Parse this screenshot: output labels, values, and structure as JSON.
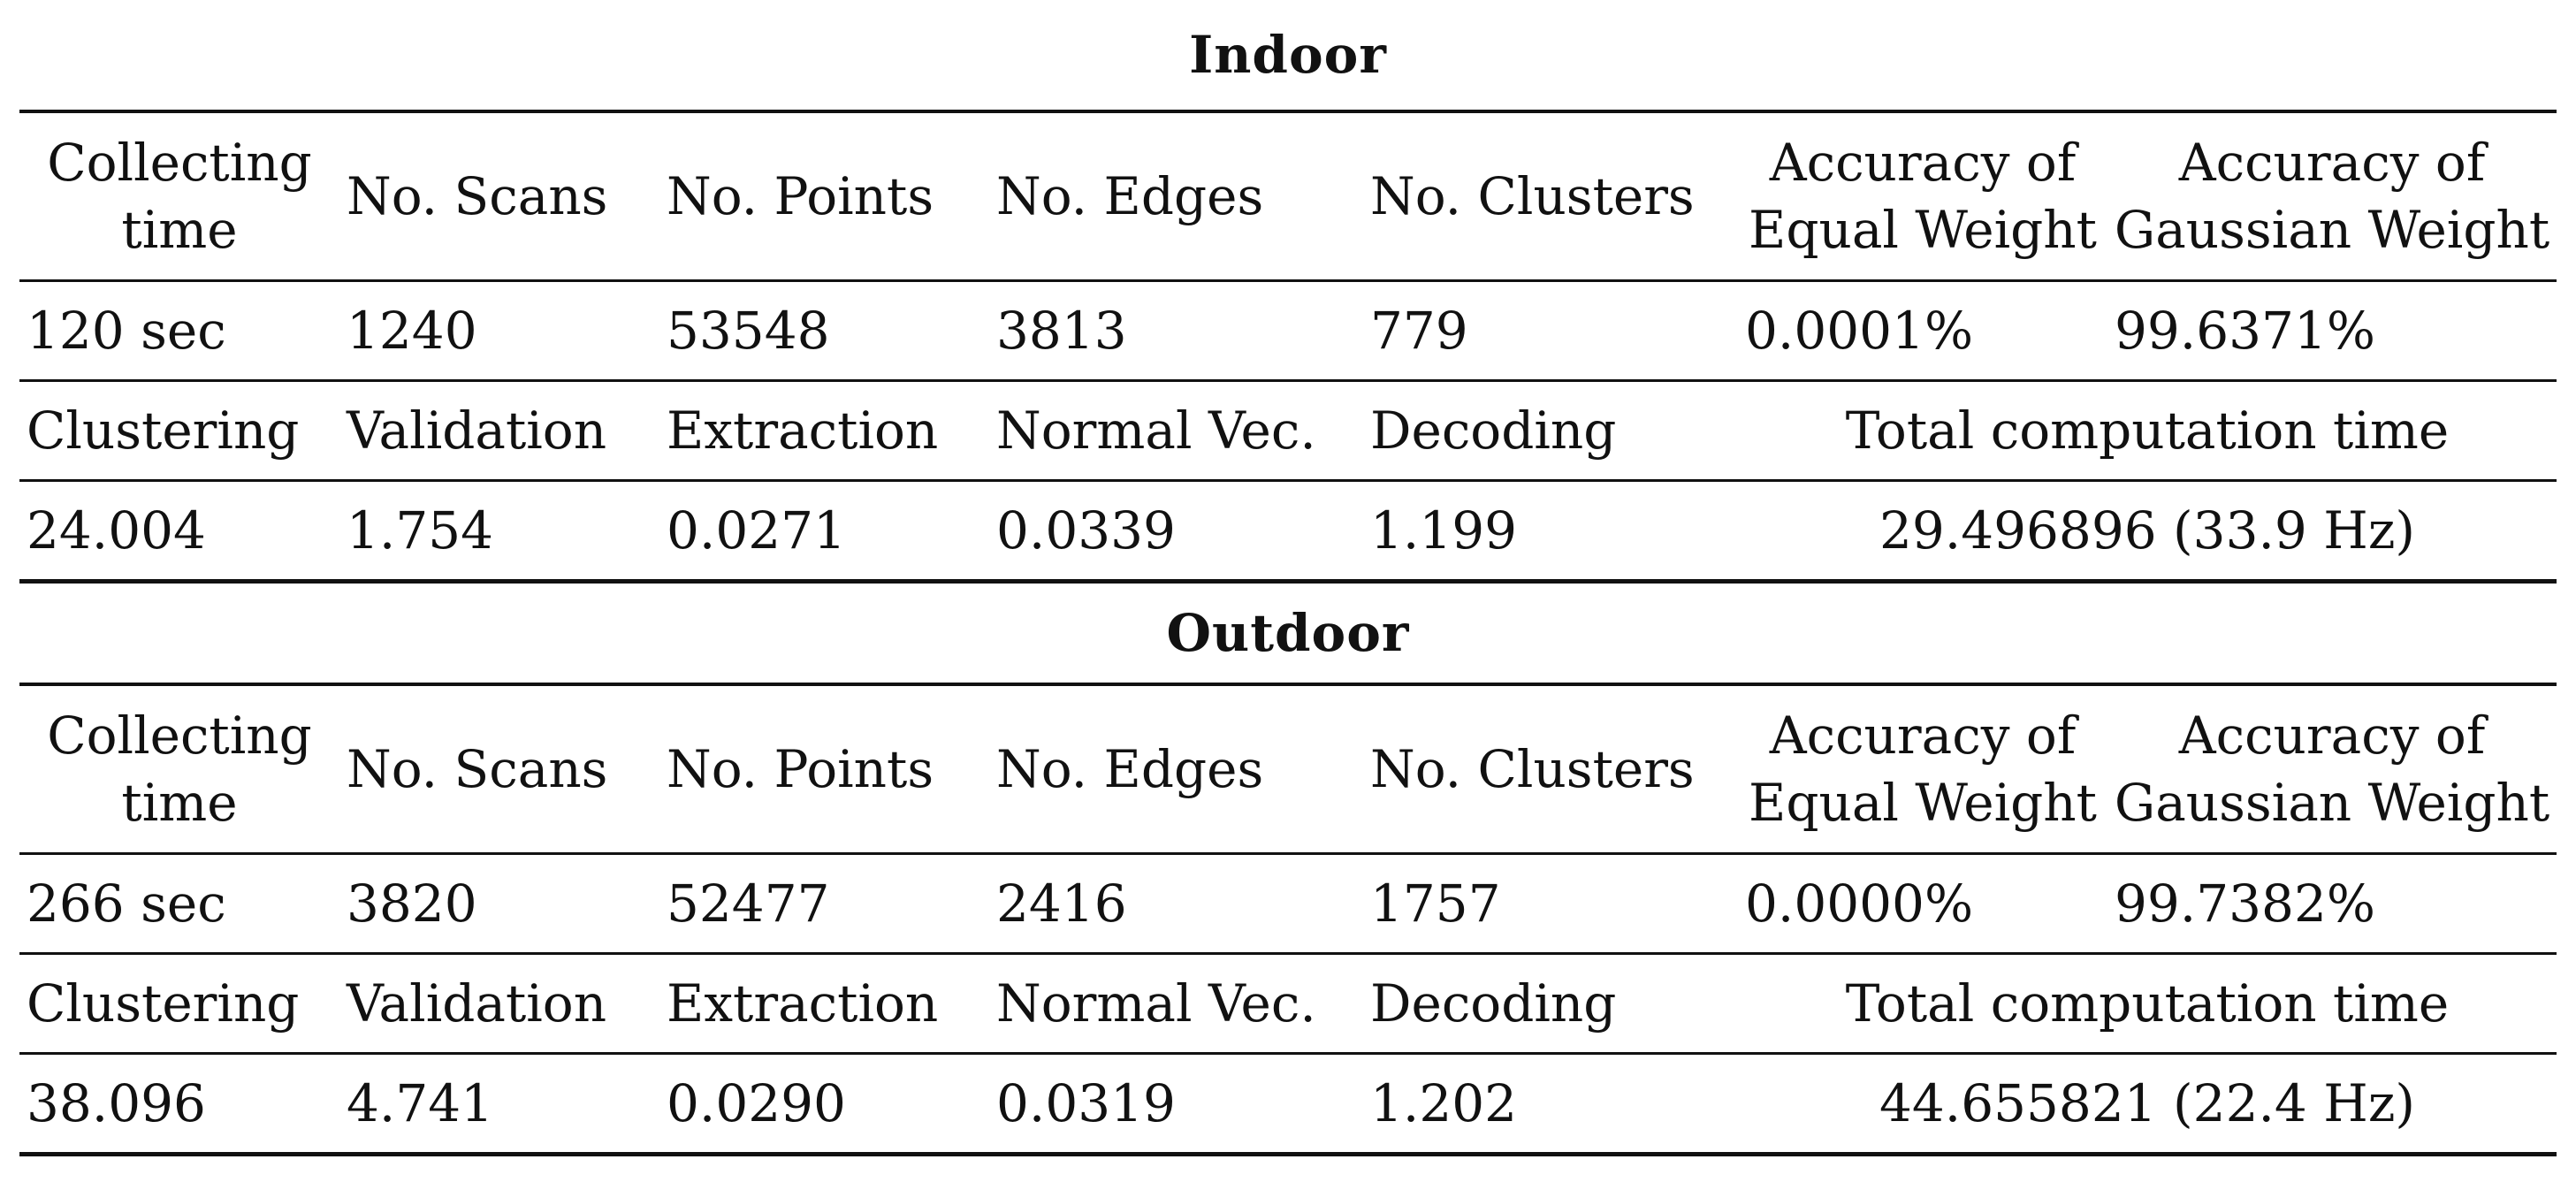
{
  "sections": [
    {
      "title": "Indoor",
      "header": {
        "collecting_line1": "Collecting",
        "collecting_line2": "time",
        "scans": "No. Scans",
        "points": "No. Points",
        "edges": "No. Edges",
        "clusters": "No. Clusters",
        "equal_line1": "Accuracy of",
        "equal_line2": "Equal Weight",
        "gaussian_line1": "Accuracy of",
        "gaussian_line2": "Gaussian Weight"
      },
      "stats": {
        "collecting": "120 sec",
        "scans": "1240",
        "points": "53548",
        "edges": "3813",
        "clusters": "779",
        "equal": "0.0001%",
        "gaussian": "99.6371%"
      },
      "timing_header": {
        "clustering": "Clustering",
        "validation": "Validation",
        "extraction": "Extraction",
        "normal": "Normal Vec.",
        "decoding": "Decoding",
        "total": "Total computation time"
      },
      "timing": {
        "clustering": "24.004",
        "validation": "1.754",
        "extraction": "0.0271",
        "normal": "0.0339",
        "decoding": "1.199",
        "total": "29.496896 (33.9 Hz)"
      }
    },
    {
      "title": "Outdoor",
      "header": {
        "collecting_line1": "Collecting",
        "collecting_line2": "time",
        "scans": "No. Scans",
        "points": "No. Points",
        "edges": "No. Edges",
        "clusters": "No. Clusters",
        "equal_line1": "Accuracy of",
        "equal_line2": "Equal Weight",
        "gaussian_line1": "Accuracy of",
        "gaussian_line2": "Gaussian Weight"
      },
      "stats": {
        "collecting": "266 sec",
        "scans": "3820",
        "points": "52477",
        "edges": "2416",
        "clusters": "1757",
        "equal": "0.0000%",
        "gaussian": "99.7382%"
      },
      "timing_header": {
        "clustering": "Clustering",
        "validation": "Validation",
        "extraction": "Extraction",
        "normal": "Normal Vec.",
        "decoding": "Decoding",
        "total": "Total computation time"
      },
      "timing": {
        "clustering": "38.096",
        "validation": "4.741",
        "extraction": "0.0290",
        "normal": "0.0319",
        "decoding": "1.202",
        "total": "44.655821 (22.4 Hz)"
      }
    }
  ]
}
